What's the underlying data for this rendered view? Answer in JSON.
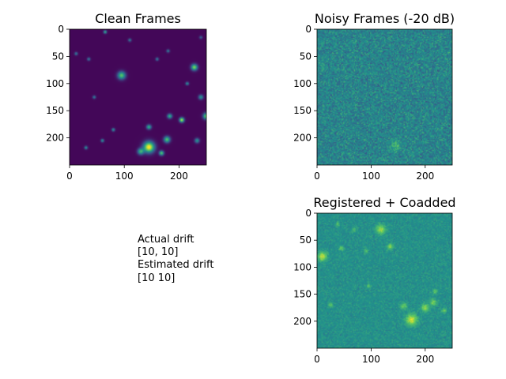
{
  "figure": {
    "note_lines": [
      "Actual drift",
      "[10, 10]",
      "Estimated drift",
      "[10 10]"
    ]
  },
  "chart_data": [
    {
      "type": "heatmap",
      "title": "Clean Frames",
      "colormap": "viridis",
      "xlim": [
        0,
        250
      ],
      "ylim": [
        250,
        0
      ],
      "xticks": [
        0,
        100,
        200
      ],
      "yticks": [
        0,
        50,
        100,
        150,
        200
      ],
      "background_level": 0.02,
      "blobs": [
        {
          "x": 95,
          "y": 85,
          "r": 5,
          "v": 0.7
        },
        {
          "x": 228,
          "y": 70,
          "r": 4,
          "v": 0.8
        },
        {
          "x": 145,
          "y": 217,
          "r": 7,
          "v": 1.0
        },
        {
          "x": 205,
          "y": 167,
          "r": 3,
          "v": 0.9
        },
        {
          "x": 178,
          "y": 203,
          "r": 4,
          "v": 0.7
        },
        {
          "x": 250,
          "y": 160,
          "r": 4,
          "v": 0.8
        },
        {
          "x": 145,
          "y": 180,
          "r": 3,
          "v": 0.6
        },
        {
          "x": 183,
          "y": 160,
          "r": 3,
          "v": 0.6
        },
        {
          "x": 130,
          "y": 225,
          "r": 4,
          "v": 0.6
        },
        {
          "x": 168,
          "y": 228,
          "r": 3,
          "v": 0.7
        },
        {
          "x": 65,
          "y": 5,
          "r": 2,
          "v": 0.6
        },
        {
          "x": 215,
          "y": 100,
          "r": 2,
          "v": 0.5
        },
        {
          "x": 240,
          "y": 125,
          "r": 3,
          "v": 0.5
        },
        {
          "x": 35,
          "y": 55,
          "r": 2,
          "v": 0.4
        },
        {
          "x": 80,
          "y": 185,
          "r": 2,
          "v": 0.5
        },
        {
          "x": 60,
          "y": 205,
          "r": 2,
          "v": 0.5
        },
        {
          "x": 30,
          "y": 218,
          "r": 2,
          "v": 0.5
        },
        {
          "x": 45,
          "y": 125,
          "r": 2,
          "v": 0.4
        },
        {
          "x": 110,
          "y": 20,
          "r": 2,
          "v": 0.4
        },
        {
          "x": 180,
          "y": 40,
          "r": 2,
          "v": 0.4
        },
        {
          "x": 160,
          "y": 55,
          "r": 2,
          "v": 0.4
        },
        {
          "x": 233,
          "y": 205,
          "r": 3,
          "v": 0.5
        },
        {
          "x": 12,
          "y": 45,
          "r": 2,
          "v": 0.4
        },
        {
          "x": 240,
          "y": 15,
          "r": 2,
          "v": 0.3
        }
      ]
    },
    {
      "type": "heatmap",
      "title": "Noisy Frames (-20 dB)",
      "colormap": "viridis",
      "xlim": [
        0,
        250
      ],
      "ylim": [
        250,
        0
      ],
      "xticks": [
        0,
        100,
        200
      ],
      "yticks": [
        0,
        50,
        100,
        150,
        200
      ],
      "background_level": 0.45,
      "noise": 0.1,
      "blobs": [
        {
          "x": 145,
          "y": 217,
          "r": 7,
          "v": 0.2
        },
        {
          "x": 10,
          "y": 70,
          "r": 4,
          "v": 0.1
        }
      ]
    },
    {
      "type": "heatmap",
      "title": "Registered + Coadded",
      "colormap": "viridis",
      "xlim": [
        0,
        250
      ],
      "ylim": [
        250,
        0
      ],
      "xticks": [
        0,
        100,
        200
      ],
      "yticks": [
        0,
        50,
        100,
        150,
        200
      ],
      "background_level": 0.5,
      "noise": 0.05,
      "blobs": [
        {
          "x": 10,
          "y": 80,
          "r": 6,
          "v": 0.4
        },
        {
          "x": 118,
          "y": 30,
          "r": 6,
          "v": 0.35
        },
        {
          "x": 175,
          "y": 197,
          "r": 7,
          "v": 0.45
        },
        {
          "x": 200,
          "y": 175,
          "r": 5,
          "v": 0.35
        },
        {
          "x": 215,
          "y": 165,
          "r": 4,
          "v": 0.3
        },
        {
          "x": 160,
          "y": 172,
          "r": 4,
          "v": 0.3
        },
        {
          "x": 135,
          "y": 62,
          "r": 4,
          "v": 0.3
        },
        {
          "x": 25,
          "y": 170,
          "r": 3,
          "v": 0.25
        },
        {
          "x": 45,
          "y": 65,
          "r": 3,
          "v": 0.25
        },
        {
          "x": 68,
          "y": 30,
          "r": 3,
          "v": 0.2
        },
        {
          "x": 90,
          "y": 70,
          "r": 3,
          "v": 0.2
        },
        {
          "x": 218,
          "y": 145,
          "r": 3,
          "v": 0.25
        },
        {
          "x": 235,
          "y": 180,
          "r": 3,
          "v": 0.25
        },
        {
          "x": 95,
          "y": 135,
          "r": 3,
          "v": 0.2
        },
        {
          "x": 38,
          "y": 20,
          "r": 3,
          "v": 0.2
        }
      ]
    }
  ]
}
